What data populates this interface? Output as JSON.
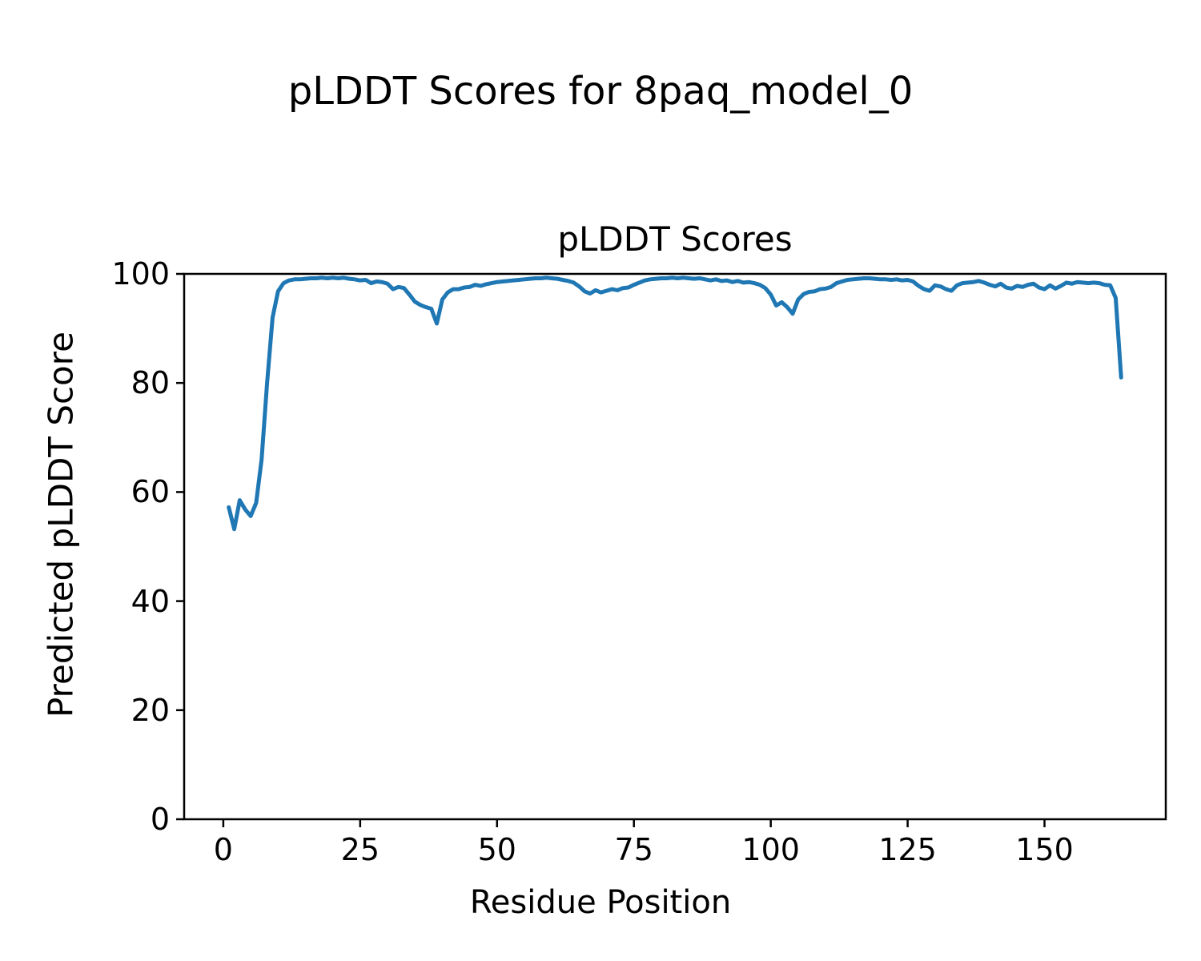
{
  "figure": {
    "suptitle": "pLDDT Scores for 8paq_model_0",
    "background_color": "#ffffff",
    "text_color": "#000000"
  },
  "chart_data": {
    "type": "line",
    "title": "pLDDT Scores",
    "xlabel": "Residue Position",
    "ylabel": "Predicted pLDDT Score",
    "series": [
      {
        "name": "pLDDT",
        "x_start": 1,
        "x_step": 1,
        "values": [
          57.2,
          53.2,
          58.5,
          56.8,
          55.6,
          58.0,
          66.0,
          80.0,
          92.0,
          96.8,
          98.3,
          98.8,
          99.0,
          99.0,
          99.1,
          99.2,
          99.2,
          99.3,
          99.2,
          99.3,
          99.2,
          99.3,
          99.1,
          99.0,
          98.8,
          98.9,
          98.3,
          98.6,
          98.5,
          98.2,
          97.2,
          97.6,
          97.4,
          96.2,
          94.9,
          94.3,
          93.9,
          93.6,
          90.9,
          95.3,
          96.6,
          97.2,
          97.2,
          97.5,
          97.6,
          98.0,
          97.8,
          98.1,
          98.3,
          98.5,
          98.6,
          98.7,
          98.8,
          98.9,
          99.0,
          99.1,
          99.2,
          99.2,
          99.3,
          99.2,
          99.1,
          98.9,
          98.7,
          98.4,
          97.7,
          96.8,
          96.4,
          97.0,
          96.6,
          96.9,
          97.2,
          97.0,
          97.4,
          97.5,
          98.0,
          98.4,
          98.8,
          99.0,
          99.1,
          99.2,
          99.2,
          99.3,
          99.2,
          99.3,
          99.2,
          99.1,
          99.2,
          99.0,
          98.8,
          99.0,
          98.7,
          98.8,
          98.5,
          98.7,
          98.4,
          98.5,
          98.3,
          98.0,
          97.4,
          96.2,
          94.2,
          94.8,
          93.9,
          92.7,
          95.3,
          96.3,
          96.7,
          96.8,
          97.2,
          97.3,
          97.6,
          98.3,
          98.6,
          98.9,
          99.0,
          99.1,
          99.2,
          99.2,
          99.1,
          99.0,
          99.0,
          98.9,
          99.0,
          98.8,
          98.9,
          98.6,
          97.8,
          97.2,
          96.9,
          97.9,
          97.7,
          97.2,
          96.9,
          97.9,
          98.3,
          98.4,
          98.5,
          98.7,
          98.4,
          98.0,
          97.7,
          98.2,
          97.5,
          97.3,
          97.8,
          97.6,
          98.0,
          98.2,
          97.5,
          97.2,
          97.9,
          97.3,
          97.8,
          98.4,
          98.2,
          98.5,
          98.4,
          98.3,
          98.4,
          98.3,
          98.0,
          97.9,
          95.6,
          81.0
        ]
      }
    ],
    "xticks": [
      0,
      25,
      50,
      75,
      100,
      125,
      150
    ],
    "yticks": [
      0,
      20,
      40,
      60,
      80,
      100
    ],
    "xlim": [
      -7.15,
      172.15
    ],
    "ylim": [
      0,
      100
    ],
    "line_color": "#1f77b4",
    "line_width": 5,
    "axis_color": "#000000",
    "grid": false,
    "legend_position": "none"
  }
}
